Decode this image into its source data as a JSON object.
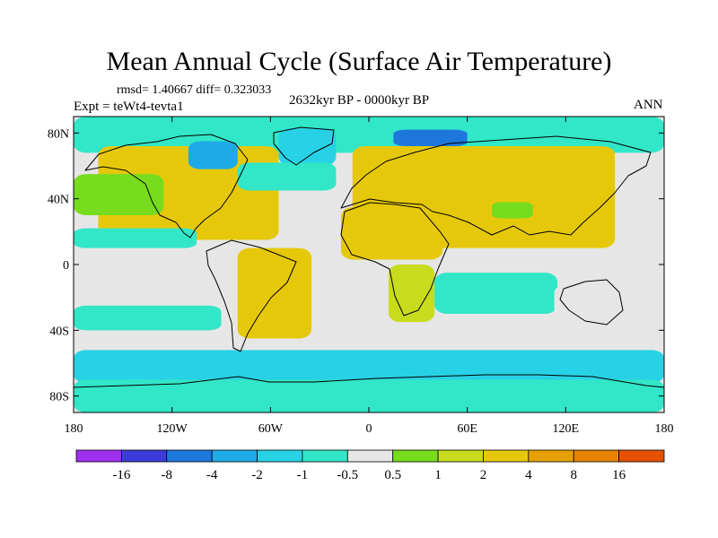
{
  "title": "Mean Annual Cycle (Surface Air Temperature)",
  "stats": "rmsd= 1.40667 diff= 0.323033",
  "experiment": "Expt = teWt4-tevta1",
  "period": "2632kyr BP - 0000kyr BP",
  "season": "ANN",
  "chart_data": {
    "type": "heatmap",
    "title": "Mean Annual Cycle (Surface Air Temperature)",
    "subtitle": "2632kyr BP - 0000kyr BP",
    "variable": "Surface Air Temperature difference",
    "rmsd": 1.40667,
    "diff": 0.323033,
    "xlim": [
      -180,
      180
    ],
    "ylim": [
      -90,
      90
    ],
    "x_ticks": [
      {
        "value": -180,
        "label": "180"
      },
      {
        "value": -120,
        "label": "120W"
      },
      {
        "value": -60,
        "label": "60W"
      },
      {
        "value": 0,
        "label": "0"
      },
      {
        "value": 60,
        "label": "60E"
      },
      {
        "value": 120,
        "label": "120E"
      },
      {
        "value": 180,
        "label": "180"
      }
    ],
    "y_ticks": [
      {
        "value": 80,
        "label": "80N"
      },
      {
        "value": 40,
        "label": "40N"
      },
      {
        "value": 0,
        "label": "0"
      },
      {
        "value": -40,
        "label": "40S"
      },
      {
        "value": -80,
        "label": "80S"
      }
    ],
    "colorbar": {
      "colors": [
        "#9f2fef",
        "#3c3cdc",
        "#1e78dc",
        "#1eaae6",
        "#28d2e6",
        "#32e6c8",
        "#e6e6e6",
        "#78dc1e",
        "#c8dc1e",
        "#e6c80a",
        "#e6a000",
        "#e68200",
        "#e65000"
      ],
      "labels": [
        "-16",
        "-8",
        "-4",
        "-2",
        "-1",
        "-0.5",
        "0.5",
        "1",
        "2",
        "4",
        "8",
        "16"
      ]
    },
    "regions": [
      {
        "name": "arctic-ocean",
        "lon": [
          -180,
          180
        ],
        "lat": [
          68,
          90
        ],
        "cls": 5
      },
      {
        "name": "north-america",
        "lon": [
          -165,
          -55
        ],
        "lat": [
          15,
          72
        ],
        "cls": 9
      },
      {
        "name": "canadian-arctic-cool-patch",
        "lon": [
          -110,
          -80
        ],
        "lat": [
          58,
          75
        ],
        "cls": 3
      },
      {
        "name": "greenland",
        "lon": [
          -55,
          -20
        ],
        "lat": [
          60,
          83
        ],
        "cls": 4
      },
      {
        "name": "barents-cool-patch",
        "lon": [
          15,
          60
        ],
        "lat": [
          72,
          82
        ],
        "cls": 2
      },
      {
        "name": "north-pacific",
        "lon": [
          -180,
          -125
        ],
        "lat": [
          30,
          55
        ],
        "cls": 7
      },
      {
        "name": "subtropical-pacific-north",
        "lon": [
          -180,
          -105
        ],
        "lat": [
          10,
          22
        ],
        "cls": 5
      },
      {
        "name": "north-atlantic",
        "lon": [
          -80,
          -20
        ],
        "lat": [
          45,
          62
        ],
        "cls": 5
      },
      {
        "name": "central-atlantic",
        "lon": [
          -45,
          -10
        ],
        "lat": [
          20,
          40
        ],
        "cls": 6
      },
      {
        "name": "eurasia",
        "lon": [
          -10,
          150
        ],
        "lat": [
          10,
          72
        ],
        "cls": 9
      },
      {
        "name": "north-africa",
        "lon": [
          -17,
          45
        ],
        "lat": [
          3,
          35
        ],
        "cls": 9
      },
      {
        "name": "tibet-cool-patch",
        "lon": [
          75,
          100
        ],
        "lat": [
          28,
          38
        ],
        "cls": 7
      },
      {
        "name": "south-america",
        "lon": [
          -80,
          -35
        ],
        "lat": [
          -45,
          10
        ],
        "cls": 9
      },
      {
        "name": "southern-africa",
        "lon": [
          12,
          40
        ],
        "lat": [
          -35,
          0
        ],
        "cls": 8
      },
      {
        "name": "indian-ocean",
        "lon": [
          40,
          115
        ],
        "lat": [
          -30,
          -5
        ],
        "cls": 5
      },
      {
        "name": "australia",
        "lon": [
          113,
          153
        ],
        "lat": [
          -38,
          -12
        ],
        "cls": 6
      },
      {
        "name": "south-pacific",
        "lon": [
          -180,
          -90
        ],
        "lat": [
          -40,
          -25
        ],
        "cls": 5
      },
      {
        "name": "southern-ocean",
        "lon": [
          -180,
          180
        ],
        "lat": [
          -72,
          -52
        ],
        "cls": 4
      },
      {
        "name": "antarctica",
        "lon": [
          -180,
          180
        ],
        "lat": [
          -90,
          -70
        ],
        "cls": 5
      }
    ]
  }
}
